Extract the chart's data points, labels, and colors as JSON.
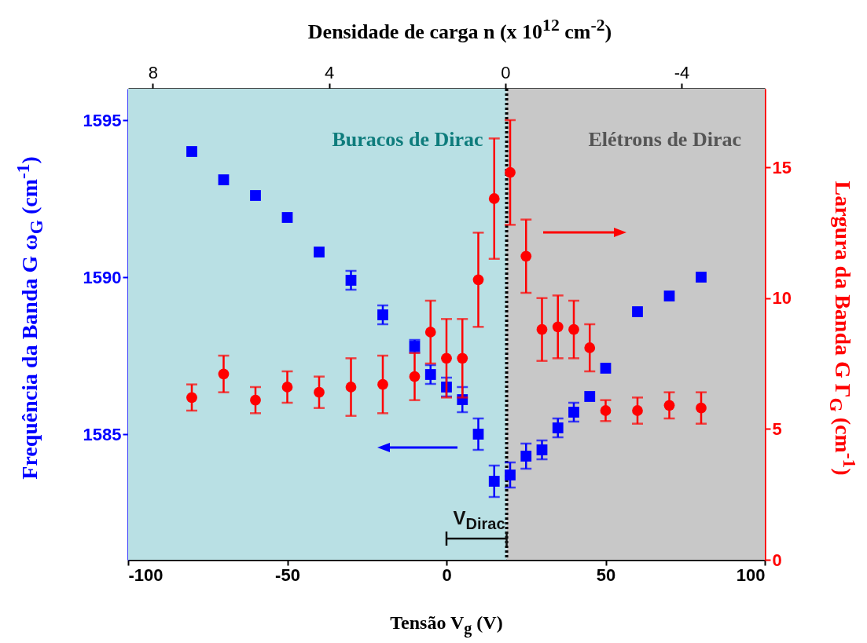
{
  "chart_data": {
    "type": "scatter",
    "xlabel": "Tensão V$_{g}$ (V)",
    "ylabel": "Frequência da Banda G  ω$_{G}$ (cm$^{-1}$)",
    "y2label": "Largura da Banda G Γ$_{G}$ (cm$^{-1}$)",
    "x2label": "Densidade de carga n (x 10$^{12}$ cm$^{-2}$)",
    "x": [
      -80,
      -70,
      -60,
      -50,
      -40,
      -30,
      -20,
      -10,
      -5,
      0,
      5,
      10,
      15,
      20,
      25,
      30,
      35,
      40,
      45,
      50,
      60,
      70,
      80
    ],
    "series": [
      {
        "color": "#0000ff",
        "marker": "square",
        "values": [
          1594.0,
          1593.1,
          1592.6,
          1591.9,
          1590.8,
          1589.9,
          1588.8,
          1587.8,
          1586.9,
          1586.5,
          1586.1,
          1585.0,
          1583.5,
          1583.7,
          1584.3,
          1584.5,
          1585.2,
          1585.7,
          1586.2,
          1587.1,
          1588.9,
          1589.4,
          1590.0
        ],
        "errors": [
          null,
          null,
          null,
          null,
          null,
          0.3,
          0.3,
          0.2,
          0.3,
          0.3,
          0.4,
          0.5,
          0.5,
          0.4,
          0.4,
          0.3,
          0.3,
          0.3,
          null,
          null,
          null,
          null,
          null
        ]
      },
      {
        "color": "#ff0000",
        "marker": "circle",
        "axis": "y2",
        "values": [
          6.2,
          7.1,
          6.1,
          6.6,
          6.4,
          6.6,
          6.7,
          7.0,
          8.7,
          7.7,
          7.7,
          10.7,
          13.8,
          14.8,
          11.6,
          8.8,
          8.9,
          8.8,
          8.1,
          5.7,
          5.7,
          5.9,
          5.8
        ],
        "errors": [
          0.5,
          0.7,
          0.5,
          0.6,
          0.6,
          1.1,
          1.1,
          0.9,
          1.2,
          1.5,
          1.5,
          1.8,
          2.3,
          2.0,
          1.4,
          1.2,
          1.2,
          1.1,
          0.9,
          0.4,
          0.5,
          0.5,
          0.6
        ]
      }
    ],
    "xlim": [
      -100,
      100
    ],
    "xticks": [
      -100,
      -50,
      0,
      50,
      100
    ],
    "ylim": [
      1581,
      1596
    ],
    "yticks": [
      1585,
      1590,
      1595
    ],
    "y2lim": [
      0,
      18
    ],
    "y2ticks": [
      0,
      5,
      10,
      15
    ],
    "x2lim": [
      8.56,
      -5.89
    ],
    "x2ticks": [
      8,
      4,
      0,
      -4
    ],
    "ref_lines": [
      {
        "axis": "x",
        "value": 18.9,
        "label": "V$_{Dirac}$",
        "color": "#000000",
        "line_style": "dotted"
      }
    ],
    "bands": [
      {
        "axis": "x",
        "from": -100,
        "to": 18.9,
        "label": "Buracos de Dirac",
        "color": "#b9e0e4"
      },
      {
        "axis": "x",
        "from": 18.9,
        "to": 100,
        "label": "Elétrons de Dirac",
        "color": "#c8c8c8"
      }
    ]
  }
}
